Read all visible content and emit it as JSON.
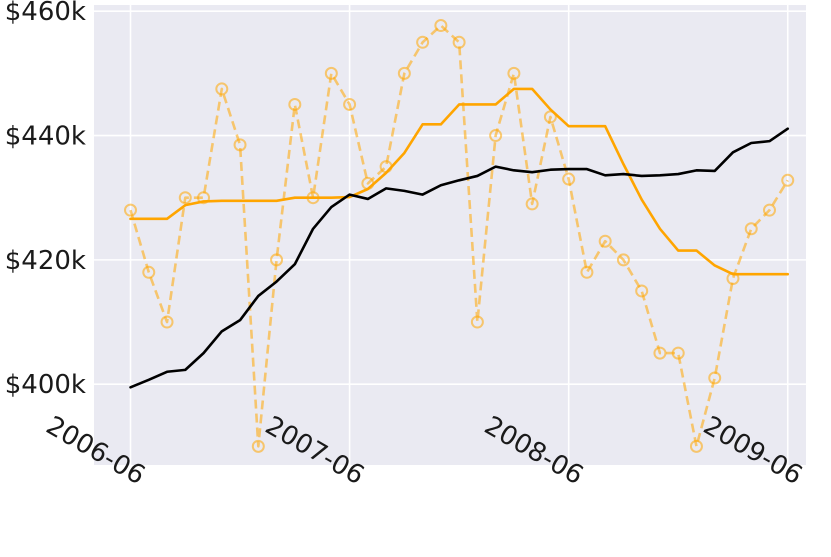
{
  "chart_data": {
    "type": "line",
    "title": "",
    "xlabel": "",
    "ylabel": "",
    "x_ticks": [
      "2006-06",
      "2007-06",
      "2008-06",
      "2009-06"
    ],
    "y_ticks": [
      {
        "value": 400000,
        "label": "$400k"
      },
      {
        "value": 420000,
        "label": "$420k"
      },
      {
        "value": 440000,
        "label": "$440k"
      },
      {
        "value": 460000,
        "label": "$460k"
      }
    ],
    "xlim": [
      "2006-04",
      "2009-07"
    ],
    "ylim": [
      387000,
      461000
    ],
    "grid": true,
    "background": "#eaeaf2",
    "x": [
      "2006-06",
      "2006-07",
      "2006-08",
      "2006-09",
      "2006-10",
      "2006-11",
      "2006-12",
      "2007-01",
      "2007-02",
      "2007-03",
      "2007-04",
      "2007-05",
      "2007-06",
      "2007-07",
      "2007-08",
      "2007-09",
      "2007-10",
      "2007-11",
      "2007-12",
      "2008-01",
      "2008-02",
      "2008-03",
      "2008-04",
      "2008-05",
      "2008-06",
      "2008-07",
      "2008-08",
      "2008-09",
      "2008-10",
      "2008-11",
      "2008-12",
      "2009-01",
      "2009-02",
      "2009-03",
      "2009-04",
      "2009-05",
      "2009-06"
    ],
    "series": [
      {
        "color": "#000000",
        "style": "solid",
        "markers": false,
        "values": [
          399500,
          400700,
          402000,
          402300,
          405000,
          408500,
          410300,
          414200,
          416500,
          419300,
          425000,
          428500,
          430500,
          429800,
          431500,
          431100,
          430500,
          432000,
          432800,
          433500,
          435000,
          434400,
          434100,
          434500,
          434600,
          434600,
          433600,
          433800,
          433500,
          433600,
          433800,
          434400,
          434300,
          437300,
          438800,
          439100,
          441100
        ]
      },
      {
        "color": "#ffa500",
        "style": "solid",
        "markers": false,
        "values": [
          426600,
          426600,
          426600,
          428800,
          429400,
          429500,
          429500,
          429500,
          429500,
          430000,
          430000,
          430000,
          430100,
          431400,
          434000,
          437200,
          441800,
          441800,
          445000,
          445000,
          445000,
          447500,
          447500,
          444200,
          441500,
          441500,
          441500,
          435400,
          429700,
          425000,
          421500,
          421500,
          419100,
          417700,
          417700,
          417700,
          417700
        ]
      },
      {
        "color": "#ffa500",
        "style": "dashed",
        "markers": true,
        "opacity": 0.55,
        "values": [
          428000,
          418000,
          410000,
          430000,
          430000,
          447500,
          438500,
          390000,
          420000,
          445000,
          430000,
          450000,
          445000,
          432300,
          435000,
          450000,
          455000,
          457700,
          455000,
          410000,
          440000,
          450000,
          429000,
          443000,
          433000,
          418000,
          423000,
          420000,
          415000,
          405000,
          405000,
          390000,
          401000,
          417000,
          425000,
          428000,
          432800
        ]
      }
    ]
  }
}
